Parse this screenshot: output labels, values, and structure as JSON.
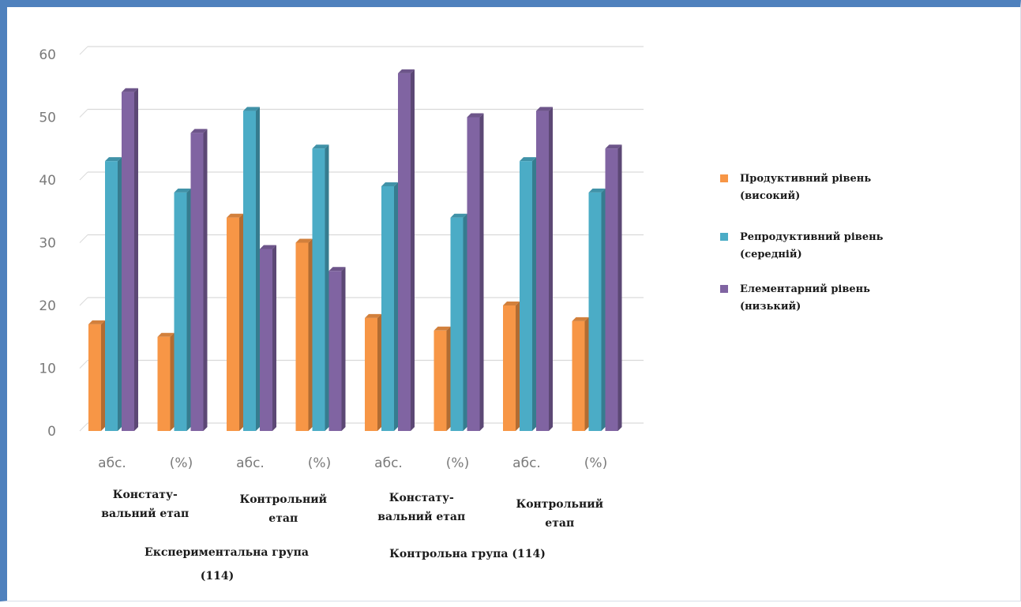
{
  "chart_data": {
    "type": "bar",
    "ylim": [
      0,
      60
    ],
    "yticks": [
      "0",
      "10",
      "20",
      "30",
      "40",
      "50",
      "60"
    ],
    "categories": [
      "абс.",
      "(%)",
      "абс.",
      "(%)",
      "абс.",
      "(%)",
      "абс.",
      "(%)"
    ],
    "stages": [
      {
        "lines": [
          "Констату-",
          "вальний етап"
        ]
      },
      {
        "lines": [
          "Контрольний",
          "етап"
        ]
      },
      {
        "lines": [
          "Констату-",
          "вальний етап"
        ]
      },
      {
        "lines": [
          "Контрольний",
          "етап"
        ]
      }
    ],
    "groups": [
      {
        "lines": [
          "Експериментальна група",
          "(114)"
        ]
      },
      {
        "lines": [
          "Контрольна група (114)"
        ]
      }
    ],
    "series": [
      {
        "name": "Продуктивний рівень (високий)",
        "name_lines": [
          "Продуктивний рівень",
          "(високий)"
        ],
        "color": "#f79646",
        "values": [
          17,
          15,
          34,
          30,
          18,
          16,
          20,
          17.5
        ]
      },
      {
        "name": "Репродуктивний рівень (середній)",
        "name_lines": [
          "Репродуктивний рівень",
          "(середній)"
        ],
        "color": "#4bacc6",
        "values": [
          43,
          38,
          51,
          45,
          39,
          34,
          43,
          38
        ]
      },
      {
        "name": "Елементарний рівень (низький)",
        "name_lines": [
          "Елементарний рівень",
          "(низький)"
        ],
        "color": "#8064a2",
        "values": [
          54,
          47.5,
          29,
          25.5,
          57,
          50,
          51,
          45
        ]
      }
    ],
    "grid": true,
    "legend": "right"
  }
}
